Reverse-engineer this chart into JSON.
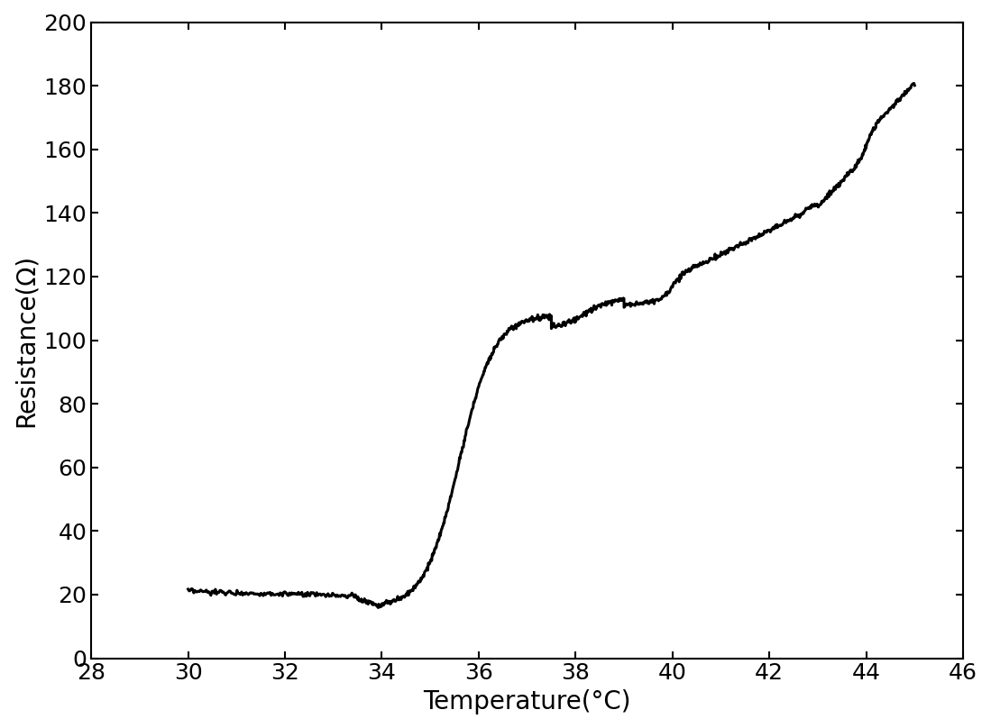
{
  "xlabel": "Temperature(°C)",
  "ylabel": "Resistance(Ω)",
  "xlim": [
    28,
    46
  ],
  "ylim": [
    0,
    200
  ],
  "xticks": [
    28,
    30,
    32,
    34,
    36,
    38,
    40,
    42,
    44,
    46
  ],
  "yticks": [
    0,
    20,
    40,
    60,
    80,
    100,
    120,
    140,
    160,
    180,
    200
  ],
  "line_color": "#000000",
  "line_width": 2.2,
  "background_color": "#ffffff",
  "xlabel_fontsize": 20,
  "ylabel_fontsize": 20,
  "tick_fontsize": 18
}
